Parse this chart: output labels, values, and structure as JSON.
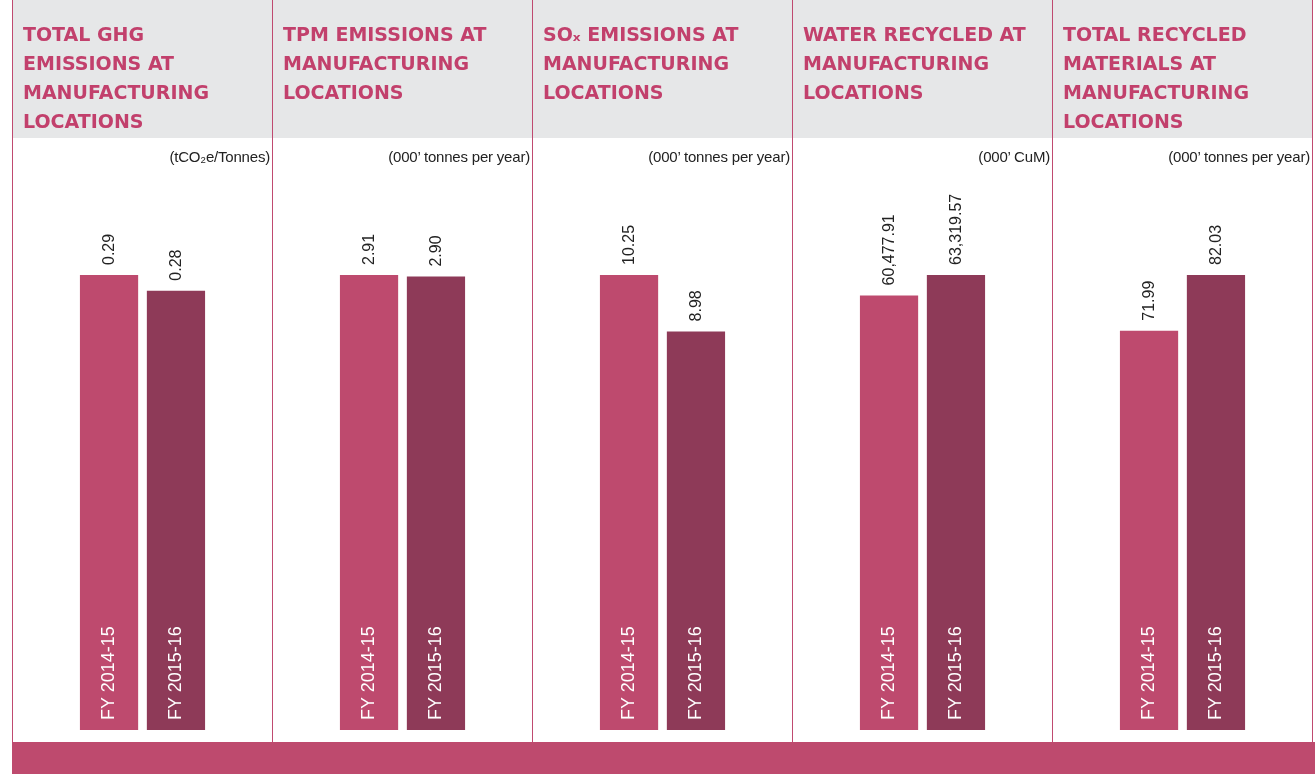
{
  "chart_data": [
    {
      "type": "bar",
      "title": "TOTAL GHG EMISSIONS AT MANUFACTURING LOCATIONS",
      "subtitle": "(tCO₂e/Tonnes)",
      "categories": [
        "FY 2014-15",
        "FY 2015-16"
      ],
      "values": [
        0.29,
        0.28
      ],
      "colors": [
        "#be4a6e",
        "#8e3a58"
      ],
      "value_labels": [
        "0.29",
        "0.28"
      ]
    },
    {
      "type": "bar",
      "title": "TPM EMISSIONS AT MANUFACTURING LOCATIONS",
      "subtitle": "(000’ tonnes per year)",
      "categories": [
        "FY 2014-15",
        "FY 2015-16"
      ],
      "values": [
        2.91,
        2.9
      ],
      "colors": [
        "#be4a6e",
        "#8e3a58"
      ],
      "value_labels": [
        "2.91",
        "2.90"
      ]
    },
    {
      "type": "bar",
      "title": "SOₓ EMISSIONS AT MANUFACTURING LOCATIONS",
      "subtitle": "(000’ tonnes per year)",
      "categories": [
        "FY 2014-15",
        "FY 2015-16"
      ],
      "values": [
        10.25,
        8.98
      ],
      "colors": [
        "#be4a6e",
        "#8e3a58"
      ],
      "value_labels": [
        "10.25",
        "8.98"
      ]
    },
    {
      "type": "bar",
      "title": "WATER RECYCLED AT MANUFACTURING LOCATIONS",
      "subtitle": "(000’ CuM)",
      "categories": [
        "FY 2014-15",
        "FY 2015-16"
      ],
      "values": [
        60477.91,
        63319.57
      ],
      "colors": [
        "#be4a6e",
        "#8e3a58"
      ],
      "value_labels": [
        "60,477.91",
        "63,319.57"
      ]
    },
    {
      "type": "bar",
      "title": "TOTAL RECYCLED MATERIALS AT MANUFACTURING LOCATIONS",
      "subtitle": "(000’ tonnes per year)",
      "categories": [
        "FY 2014-15",
        "FY 2015-16"
      ],
      "values": [
        71.99,
        82.03
      ],
      "colors": [
        "#be4a6e",
        "#8e3a58"
      ],
      "value_labels": [
        "71.99",
        "82.03"
      ]
    }
  ]
}
